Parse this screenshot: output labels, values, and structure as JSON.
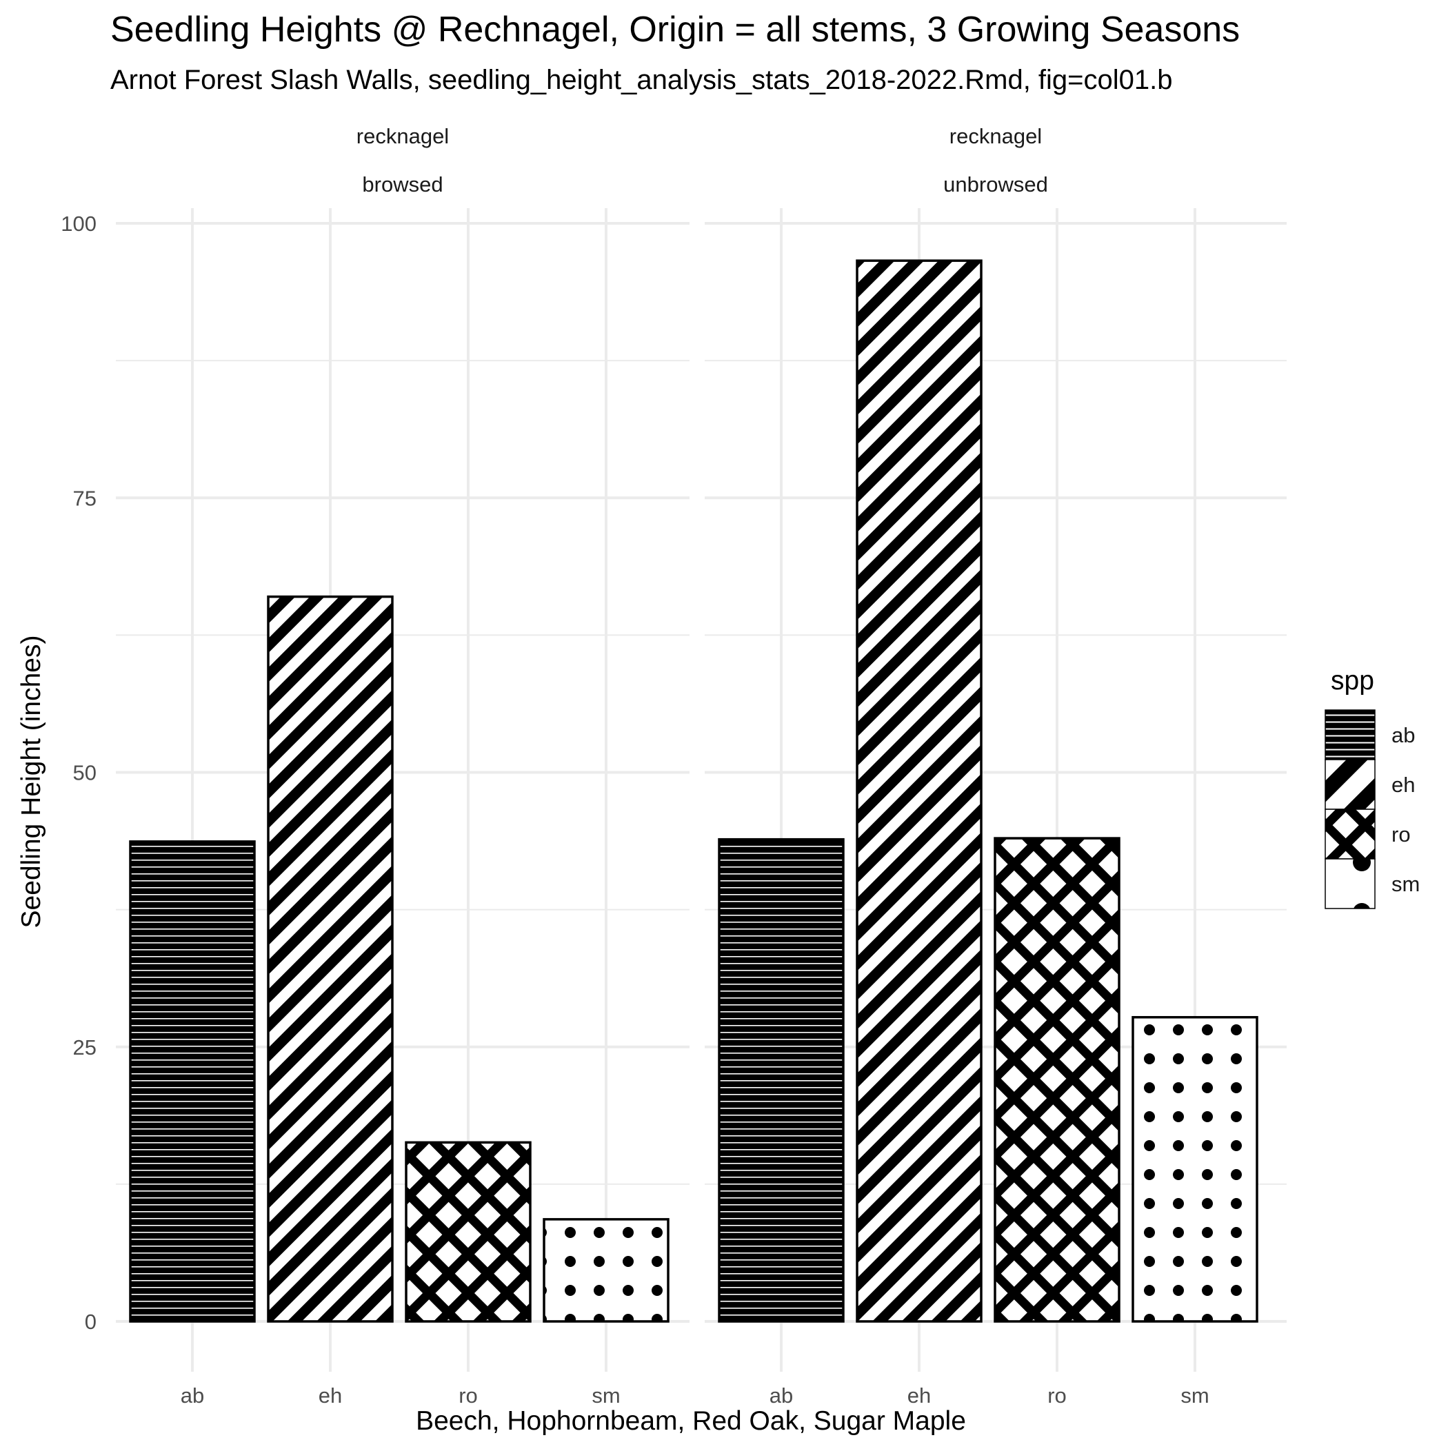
{
  "chart_data": {
    "type": "bar",
    "title": "Seedling Heights @ Rechnagel, Origin = all stems, 3 Growing Seasons",
    "subtitle": "Arnot Forest Slash Walls, seedling_height_analysis_stats_2018-2022.Rmd, fig=col01.b",
    "xlabel": "Beech, Hophornbeam, Red Oak, Sugar Maple",
    "ylabel": "Seedling Height (inches)",
    "ylim": [
      0,
      100
    ],
    "y_ticks": [
      "0",
      "25",
      "50",
      "75",
      "100"
    ],
    "categories": [
      "ab",
      "eh",
      "ro",
      "sm"
    ],
    "grid": true,
    "facets": [
      {
        "strip_top": "recknagel",
        "strip_bottom": "browsed",
        "values": [
          43.7,
          66.0,
          16.3,
          9.3
        ]
      },
      {
        "strip_top": "recknagel",
        "strip_bottom": "unbrowsed",
        "values": [
          43.9,
          96.6,
          44.0,
          27.7
        ]
      }
    ],
    "legend": {
      "title": "spp",
      "position": "right",
      "items": [
        {
          "label": "ab",
          "pattern": "horizontal-lines"
        },
        {
          "label": "eh",
          "pattern": "diagonal-stripes"
        },
        {
          "label": "ro",
          "pattern": "crosshatch"
        },
        {
          "label": "sm",
          "pattern": "dots"
        }
      ]
    },
    "colors": {
      "ink": "#000000",
      "fill": "#ffffff",
      "grid": "#ebebeb",
      "tick_text": "#4d4d4d"
    }
  }
}
